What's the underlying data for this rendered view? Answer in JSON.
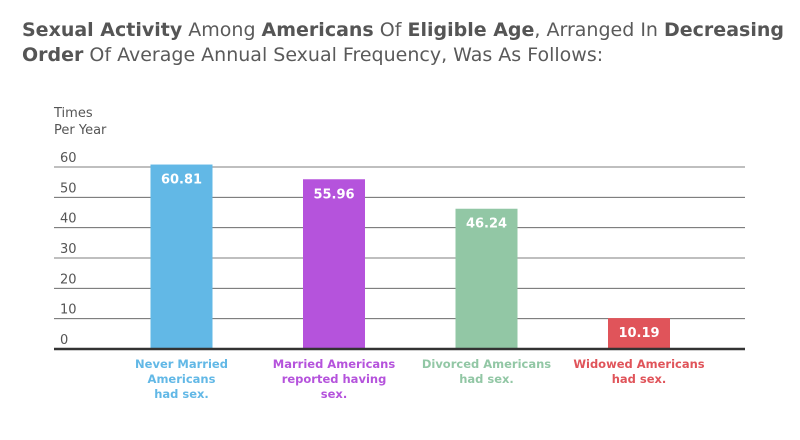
{
  "title_parts": [
    {
      "text": "Sexual Activity",
      "bold": true
    },
    {
      "text": " Among ",
      "bold": false
    },
    {
      "text": "Americans",
      "bold": true
    },
    {
      "text": " Of ",
      "bold": false
    },
    {
      "text": "Eligible Age",
      "bold": true
    },
    {
      "text": ", Arranged In ",
      "bold": false
    },
    {
      "text": "Decreasing Order",
      "bold": true
    },
    {
      "text": " Of Average Annual Sexual Frequency, Was As Follows:",
      "bold": false
    }
  ],
  "chart_data": {
    "type": "bar",
    "title": "Sexual Activity Among Americans Of Eligible Age, Arranged In Decreasing Order Of Average Annual Sexual Frequency, Was As Follows:",
    "ylabel": [
      "Times",
      "Per Year"
    ],
    "xlabel": "",
    "ylim": [
      0,
      60
    ],
    "yticks": [
      0,
      10,
      20,
      30,
      40,
      50,
      60
    ],
    "grid": true,
    "categories": [
      [
        "Never Married",
        "Americans",
        "had sex."
      ],
      [
        "Married Americans",
        "reported having",
        "sex."
      ],
      [
        "Divorced Americans",
        "had sex."
      ],
      [
        "Widowed Americans",
        "had sex."
      ]
    ],
    "values": [
      60.81,
      55.96,
      46.24,
      10.19
    ],
    "value_labels": [
      "60.81",
      "55.96",
      "46.24",
      "10.19"
    ],
    "colors": [
      "#62b8e6",
      "#b553dc",
      "#92c7a5",
      "#e0545a"
    ]
  }
}
